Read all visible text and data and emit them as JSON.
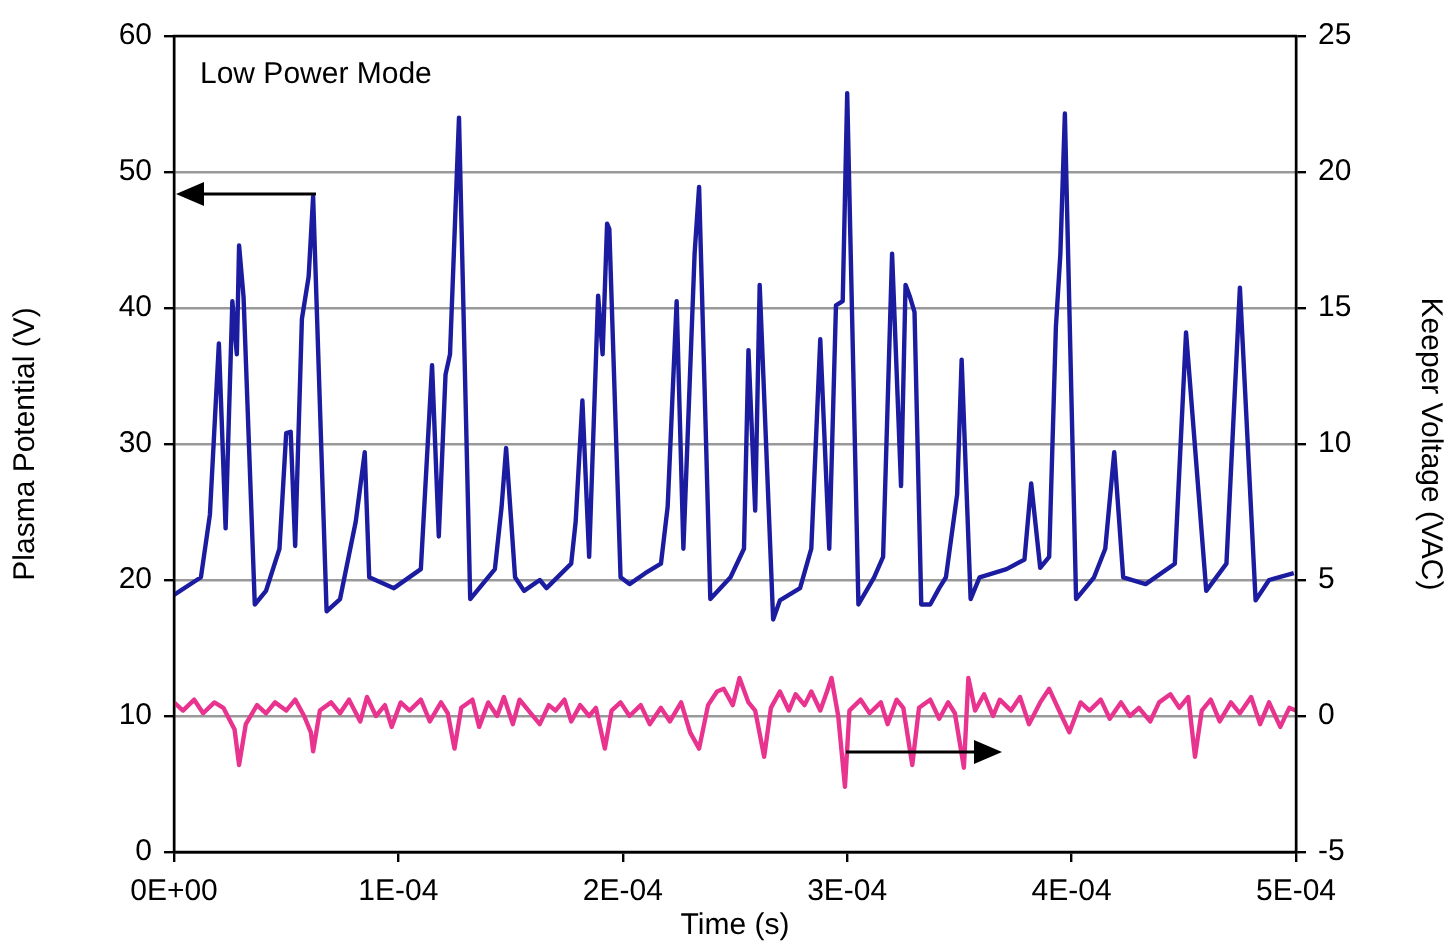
{
  "chart_data": {
    "type": "line",
    "xlabel": "Time (s)",
    "ylabel": "Plasma Potential (V)",
    "y2label": "Keeper Voltage (VAC)",
    "annotations": [
      "Low Power Mode"
    ],
    "xlim": [
      0,
      0.0005
    ],
    "xticks": [
      {
        "value": 0,
        "label": "0E+00"
      },
      {
        "value": 0.0001,
        "label": "1E-04"
      },
      {
        "value": 0.0002,
        "label": "2E-04"
      },
      {
        "value": 0.0003,
        "label": "3E-04"
      },
      {
        "value": 0.0004,
        "label": "4E-04"
      },
      {
        "value": 0.0005,
        "label": "5E-04"
      }
    ],
    "ylim": [
      0,
      60
    ],
    "yticks": [
      0,
      10,
      20,
      30,
      40,
      50,
      60
    ],
    "y2lim": [
      -5,
      25
    ],
    "y2ticks": [
      -5,
      0,
      5,
      10,
      15,
      20,
      25
    ],
    "grid": "y",
    "legend": false,
    "marker": "none",
    "line_style": "solid",
    "series": [
      {
        "color": "#1c1ca0",
        "axis": "y",
        "x": [
          0,
          1.2e-05,
          1.6e-05,
          2e-05,
          2.3e-05,
          2.6e-05,
          2.8e-05,
          2.9e-05,
          3.1e-05,
          3.6e-05,
          4.1e-05,
          4.7e-05,
          5e-05,
          5.2e-05,
          5.4e-05,
          5.7e-05,
          6e-05,
          6.2e-05,
          6.8e-05,
          7.4e-05,
          8.1e-05,
          8.5e-05,
          8.7e-05,
          9.8e-05,
          0.00011,
          0.000115,
          0.000118,
          0.000121,
          0.000123,
          0.000127,
          0.000132,
          0.000143,
          0.000146,
          0.000148,
          0.000152,
          0.000156,
          0.000163,
          0.000166,
          0.000177,
          0.000179,
          0.000182,
          0.000185,
          0.000189,
          0.000191,
          0.000193,
          0.000194,
          0.000199,
          0.000203,
          0.00021,
          0.000217,
          0.00022,
          0.000224,
          0.000227,
          0.000232,
          0.000234,
          0.000239,
          0.000248,
          0.000254,
          0.000256,
          0.000259,
          0.000261,
          0.000267,
          0.00027,
          0.000279,
          0.000284,
          0.000288,
          0.000292,
          0.000295,
          0.000298,
          0.0003,
          0.000305,
          0.000312,
          0.000316,
          0.00032,
          0.000324,
          0.000326,
          0.000328,
          0.00033,
          0.000333,
          0.000337,
          0.000341,
          0.000344,
          0.000349,
          0.000351,
          0.000355,
          0.000359,
          0.000371,
          0.000379,
          0.000382,
          0.000386,
          0.00039,
          0.000393,
          0.000395,
          0.000397,
          0.000402,
          0.00041,
          0.000415,
          0.000419,
          0.000423,
          0.000433,
          0.000446,
          0.000451,
          0.00046,
          0.000469,
          0.000475,
          0.000482,
          0.000488,
          0.000499
        ],
        "values": [
          18.9,
          20.2,
          24.8,
          37.4,
          23.8,
          40.5,
          36.6,
          44.6,
          40.8,
          18.2,
          19.2,
          22.3,
          30.8,
          30.9,
          22.5,
          39.2,
          42.3,
          48.2,
          17.7,
          18.6,
          24.3,
          29.4,
          20.2,
          19.4,
          20.8,
          35.8,
          23.2,
          35.1,
          36.6,
          54.0,
          18.6,
          20.8,
          25.4,
          29.7,
          20.2,
          19.2,
          20.0,
          19.4,
          21.2,
          24.3,
          33.2,
          21.7,
          40.9,
          36.6,
          46.2,
          45.8,
          20.2,
          19.7,
          20.5,
          21.2,
          25.4,
          40.5,
          22.3,
          44.0,
          48.9,
          18.6,
          20.2,
          22.3,
          36.9,
          25.1,
          41.7,
          17.1,
          18.5,
          19.4,
          22.3,
          37.7,
          22.3,
          40.2,
          40.5,
          55.8,
          18.2,
          20.2,
          21.7,
          44.0,
          26.9,
          41.7,
          40.8,
          39.7,
          18.2,
          18.2,
          19.4,
          20.2,
          26.3,
          36.2,
          18.6,
          20.2,
          20.8,
          21.5,
          27.1,
          20.9,
          21.7,
          38.6,
          44.0,
          54.3,
          18.6,
          20.2,
          22.3,
          29.4,
          20.2,
          19.7,
          21.2,
          38.2,
          19.2,
          21.2,
          41.5,
          18.5,
          20.0,
          20.5
        ]
      },
      {
        "color": "#e8348f",
        "axis": "y2",
        "x": [
          0,
          4e-06,
          9e-06,
          1.3e-05,
          1.8e-05,
          2.2e-05,
          2.7e-05,
          2.9e-05,
          3.2e-05,
          3.7e-05,
          4.1e-05,
          4.5e-05,
          5e-05,
          5.4e-05,
          5.8e-05,
          6.1e-05,
          6.2e-05,
          6.5e-05,
          7e-05,
          7.4e-05,
          7.8e-05,
          8.3e-05,
          8.6e-05,
          9e-05,
          9.4e-05,
          9.7e-05,
          0.000101,
          0.000105,
          0.00011,
          0.000114,
          0.000119,
          0.000122,
          0.000125,
          0.000128,
          0.000133,
          0.000136,
          0.00014,
          0.000144,
          0.000147,
          0.000151,
          0.000154,
          0.000159,
          0.000163,
          0.000167,
          0.00017,
          0.000174,
          0.000177,
          0.000181,
          0.000185,
          0.000188,
          0.000192,
          0.000195,
          0.000199,
          0.000203,
          0.000208,
          0.000212,
          0.000217,
          0.000221,
          0.000226,
          0.00023,
          0.000234,
          0.000238,
          0.000242,
          0.000245,
          0.000249,
          0.000252,
          0.000256,
          0.000259,
          0.000263,
          0.000266,
          0.00027,
          0.000274,
          0.000277,
          0.000281,
          0.000284,
          0.000288,
          0.000291,
          0.000293,
          0.000296,
          0.000299,
          0.000301,
          0.000306,
          0.00031,
          0.000315,
          0.000318,
          0.000322,
          0.000325,
          0.000329,
          0.000332,
          0.000337,
          0.000341,
          0.000345,
          0.000348,
          0.000352,
          0.000354,
          0.000357,
          0.000361,
          0.000365,
          0.000368,
          0.000373,
          0.000377,
          0.000381,
          0.000386,
          0.00039,
          0.000395,
          0.000399,
          0.000404,
          0.000408,
          0.000413,
          0.000417,
          0.000422,
          0.000426,
          0.00043,
          0.000435,
          0.000439,
          0.000444,
          0.000448,
          0.000452,
          0.000455,
          0.000458,
          0.000462,
          0.000466,
          0.000471,
          0.000475,
          0.00048,
          0.000484,
          0.000488,
          0.000493,
          0.000497,
          0.0005
        ],
        "values": [
          0.5,
          0.2,
          0.6,
          0.1,
          0.5,
          0.3,
          -0.5,
          -1.8,
          -0.3,
          0.4,
          0.1,
          0.5,
          0.2,
          0.6,
          0.0,
          -0.6,
          -1.3,
          0.2,
          0.5,
          0.1,
          0.6,
          -0.2,
          0.7,
          0.0,
          0.4,
          -0.4,
          0.5,
          0.2,
          0.6,
          -0.2,
          0.5,
          0.1,
          -1.2,
          0.3,
          0.6,
          -0.4,
          0.5,
          0.0,
          0.7,
          -0.3,
          0.6,
          0.1,
          -0.3,
          0.4,
          0.2,
          0.6,
          -0.2,
          0.4,
          0.0,
          0.3,
          -1.2,
          0.2,
          0.5,
          0.0,
          0.4,
          -0.3,
          0.3,
          -0.2,
          0.5,
          -0.6,
          -1.2,
          0.4,
          0.9,
          1.0,
          0.4,
          1.4,
          0.5,
          0.2,
          -1.5,
          0.3,
          0.9,
          0.2,
          0.8,
          0.4,
          0.9,
          0.2,
          0.9,
          1.4,
          0.0,
          -2.6,
          0.2,
          0.6,
          0.1,
          0.5,
          -0.3,
          0.6,
          0.3,
          -1.8,
          0.3,
          0.6,
          -0.1,
          0.5,
          0.1,
          -1.9,
          1.4,
          0.2,
          0.8,
          0.0,
          0.6,
          0.2,
          0.7,
          -0.3,
          0.5,
          1.0,
          0.1,
          -0.6,
          0.5,
          0.2,
          0.6,
          -0.1,
          0.5,
          0.0,
          0.3,
          -0.2,
          0.5,
          0.8,
          0.3,
          0.7,
          -1.5,
          0.2,
          0.6,
          -0.2,
          0.5,
          0.1,
          0.7,
          -0.3,
          0.5,
          -0.4,
          0.3,
          0.2
        ]
      }
    ]
  }
}
